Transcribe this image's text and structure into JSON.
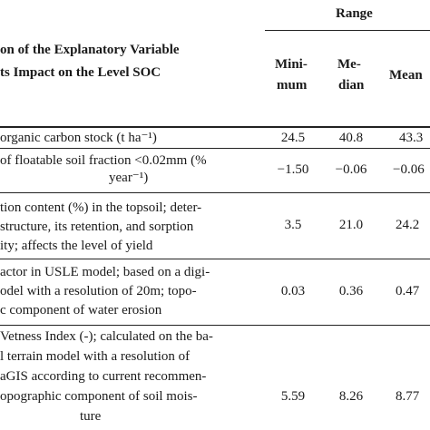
{
  "header": {
    "group_label": "Range",
    "left_line1": "on of the Explanatory Variable",
    "left_line2": "ts Impact on the Level SOC",
    "col_min_line1": "Mini-",
    "col_min_line2": "mum",
    "col_med_line1": "Me-",
    "col_med_line2": "dian",
    "col_mean": "Mean"
  },
  "rows": [
    {
      "desc": [
        "organic carbon stock (t ha⁻¹)"
      ],
      "min": "24.5",
      "median": "40.8",
      "mean": "43.3"
    },
    {
      "desc": [
        "of floatable soil fraction <0.02mm (%",
        "year⁻¹)"
      ],
      "min": "−1.50",
      "median": "−0.06",
      "mean": "−0.06"
    },
    {
      "desc": [
        "tion content (%) in the topsoil; deter-",
        "structure, its retention, and sorption",
        "ity; affects the level of yield"
      ],
      "min": "3.5",
      "median": "21.0",
      "mean": "24.2"
    },
    {
      "desc": [
        "actor in USLE model; based on a digi-",
        "odel with a resolution of 20m; topo-",
        "c component of water erosion"
      ],
      "min": "0.03",
      "median": "0.36",
      "mean": "0.47"
    },
    {
      "desc": [
        "Vetness Index (-); calculated on the ba-",
        "l terrain model with a resolution of",
        "aGIS according to current recommen-",
        "opographic component of soil mois-",
        "ture"
      ],
      "min": "5.59",
      "median": "8.26",
      "mean": "8.77"
    }
  ]
}
